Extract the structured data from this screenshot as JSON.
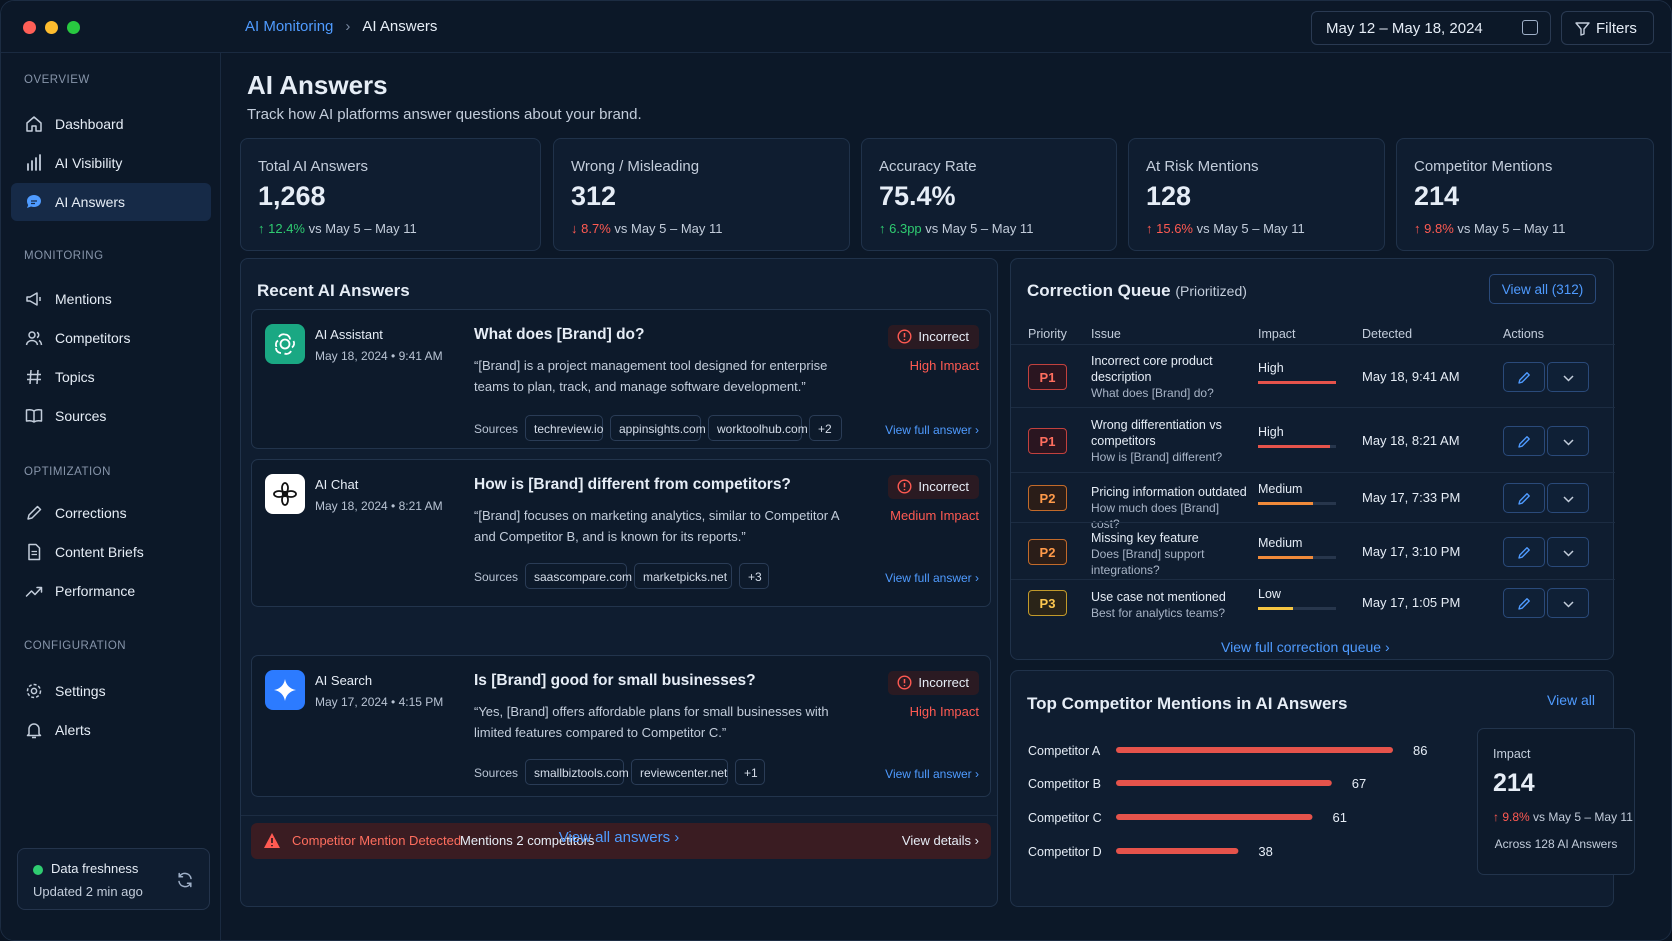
{
  "window": {
    "dots": [
      "#ff5f57",
      "#febc2e",
      "#28c840"
    ]
  },
  "breadcrumb": {
    "parent": "AI Monitoring",
    "current": "AI Answers"
  },
  "header": {
    "date_range": "May 12 – May 18, 2024",
    "filters_label": "Filters"
  },
  "sidebar": {
    "sections": {
      "overview": "OVERVIEW",
      "monitoring": "MONITORING",
      "optimization": "OPTIMIZATION",
      "configuration": "CONFIGURATION"
    },
    "items": {
      "dashboard": "Dashboard",
      "ai_visibility": "AI Visibility",
      "ai_answers": "AI Answers",
      "mentions": "Mentions",
      "competitors": "Competitors",
      "topics": "Topics",
      "sources": "Sources",
      "corrections": "Corrections",
      "content_briefs": "Content Briefs",
      "performance": "Performance",
      "settings": "Settings",
      "alerts": "Alerts"
    },
    "freshness": {
      "label": "Data freshness",
      "updated": "Updated 2 min ago"
    }
  },
  "page": {
    "title": "AI Answers",
    "subtitle": "Track how AI platforms answer questions about your brand."
  },
  "kpis": [
    {
      "label": "Total AI Answers",
      "value": "1,268",
      "delta": "12.4%",
      "direction": "up",
      "good": true,
      "compare": "vs May 5 – May 11"
    },
    {
      "label": "Wrong / Misleading",
      "value": "312",
      "delta": "8.7%",
      "direction": "down",
      "good": false,
      "compare": "vs May 5 – May 11"
    },
    {
      "label": "Accuracy Rate",
      "value": "75.4%",
      "delta": "6.3pp",
      "direction": "up",
      "good": true,
      "compare": "vs May 5 – May 11"
    },
    {
      "label": "At Risk Mentions",
      "value": "128",
      "delta": "15.6%",
      "direction": "up",
      "good": false,
      "compare": "vs May 5 – May 11"
    },
    {
      "label": "Competitor Mentions",
      "value": "214",
      "delta": "9.8%",
      "direction": "up",
      "good": false,
      "compare": "vs May 5 – May 11"
    }
  ],
  "recent": {
    "title": "Recent AI Answers",
    "sources_label": "Sources",
    "view_full": "View full answer",
    "view_all": "View all answers",
    "answers": [
      {
        "platform": "AI Assistant",
        "date": "May 18, 2024",
        "time": "9:41 AM",
        "question": "What does [Brand] do?",
        "answer": "“[Brand] is a project management tool designed for enterprise teams to plan, track, and manage software development.”",
        "status": "Incorrect",
        "impact": "High Impact",
        "sources": [
          "techreview.io",
          "appinsights.com",
          "worktoolhub.com",
          "+2"
        ],
        "icon": "openai-icon",
        "color": "#1aa883"
      },
      {
        "platform": "AI Chat",
        "date": "May 18, 2024",
        "time": "8:21 AM",
        "question": "How is [Brand] different from competitors?",
        "answer": "“[Brand] focuses on marketing analytics, similar to Competitor A and Competitor B, and is known for its reports.”",
        "status": "Incorrect",
        "impact": "Medium Impact",
        "sources": [
          "saascompare.com",
          "marketpicks.net",
          "+3"
        ],
        "icon": "flower-icon",
        "color": "#ffffff"
      },
      {
        "platform": "AI Search",
        "date": "May 17, 2024",
        "time": "4:15 PM",
        "question": "Is [Brand] good for small businesses?",
        "answer": "“Yes, [Brand] offers affordable plans for small businesses with limited features compared to Competitor C.”",
        "status": "Incorrect",
        "impact": "High Impact",
        "sources": [
          "smallbiztools.com",
          "reviewcenter.net",
          "+1"
        ],
        "icon": "sparkle-icon",
        "color": "#2c7bff"
      }
    ],
    "alert": {
      "title": "Competitor Mention Detected",
      "message": "Mentions 2 competitors",
      "action": "View details"
    }
  },
  "queue": {
    "title": "Correction Queue",
    "title_note": "(Prioritized)",
    "view_all": "View all (312)",
    "columns": [
      "Priority",
      "Issue",
      "Impact",
      "Detected",
      "Actions"
    ],
    "rows": [
      {
        "priority": "P1",
        "issue": "Incorrect core product description",
        "question": "What does [Brand] do?",
        "impact": "High",
        "level": 1.0,
        "detected": "May 18, 9:41 AM"
      },
      {
        "priority": "P1",
        "issue": "Wrong differentiation vs competitors",
        "question": "How is [Brand] different?",
        "impact": "High",
        "level": 0.92,
        "detected": "May 18, 8:21 AM"
      },
      {
        "priority": "P2",
        "issue": "Pricing information outdated",
        "question": "How much does [Brand] cost?",
        "impact": "Medium",
        "level": 0.7,
        "detected": "May 17, 7:33 PM"
      },
      {
        "priority": "P2",
        "issue": "Missing key feature",
        "question": "Does [Brand] support integrations?",
        "impact": "Medium",
        "level": 0.7,
        "detected": "May 17, 3:10 PM"
      },
      {
        "priority": "P3",
        "issue": "Use case not mentioned",
        "question": "Best for analytics teams?",
        "impact": "Low",
        "level": 0.45,
        "detected": "May 17, 1:05 PM"
      }
    ],
    "footer_link": "View full correction queue"
  },
  "competitors": {
    "title": "Top Competitor Mentions in AI Answers",
    "view_all": "View all",
    "impact_label": "Impact",
    "impact_value": "214",
    "impact_delta": "9.8%",
    "impact_compare": "vs May 5 – May 11",
    "impact_note": "Across 128 AI Answers"
  },
  "chart_data": {
    "type": "bar",
    "orientation": "horizontal",
    "categories": [
      "Competitor A",
      "Competitor B",
      "Competitor C",
      "Competitor D"
    ],
    "values": [
      86,
      67,
      61,
      38
    ],
    "title": "Top Competitor Mentions in AI Answers",
    "xlim": [
      0,
      86
    ]
  }
}
